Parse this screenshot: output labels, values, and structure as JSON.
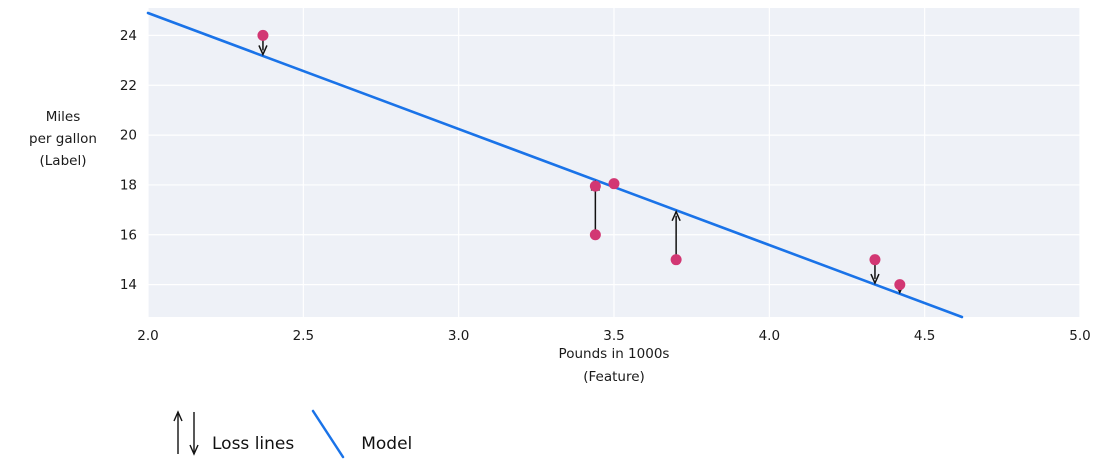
{
  "figure": {
    "background": "#ffffff",
    "plot_background": "#eef1f7",
    "grid_color": "#ffffff",
    "text_color": "#1a1a1a"
  },
  "chart_data": {
    "type": "scatter",
    "title": "",
    "xlabel": "Pounds in 1000s\n(Feature)",
    "ylabel": "Miles\nper gallon\n(Label)",
    "xlim": [
      2.0,
      5.0
    ],
    "ylim": [
      12.7,
      25.1
    ],
    "grid": true,
    "x_ticks": [
      2.0,
      2.5,
      3.0,
      3.5,
      4.0,
      4.5,
      5.0
    ],
    "x_tick_labels": [
      "2.0",
      "2.5",
      "3.0",
      "3.5",
      "4.0",
      "4.5",
      "5.0"
    ],
    "y_ticks": [
      14,
      16,
      18,
      20,
      22,
      24
    ],
    "y_tick_labels": [
      "14",
      "16",
      "18",
      "20",
      "22",
      "24"
    ],
    "model_line": {
      "x1": 2.0,
      "y1": 24.9,
      "x2": 4.62,
      "y2": 12.7,
      "color": "#1a73e8"
    },
    "point_color": "#d23773",
    "loss_line_color": "#111111",
    "points": [
      {
        "x": 2.37,
        "y": 24.0,
        "loss": true
      },
      {
        "x": 3.44,
        "y": 17.95,
        "loss": false
      },
      {
        "x": 3.5,
        "y": 18.05,
        "loss": false
      },
      {
        "x": 3.44,
        "y": 16.0,
        "loss": true
      },
      {
        "x": 3.7,
        "y": 15.0,
        "loss": true
      },
      {
        "x": 4.34,
        "y": 15.0,
        "loss": true
      },
      {
        "x": 4.42,
        "y": 14.0,
        "loss": true
      }
    ],
    "legend_position": "bottom-left",
    "legend": [
      {
        "label": "Loss lines",
        "symbol": "up-down-arrows-icon"
      },
      {
        "label": "Model",
        "symbol": "diagonal-line-icon"
      }
    ]
  }
}
